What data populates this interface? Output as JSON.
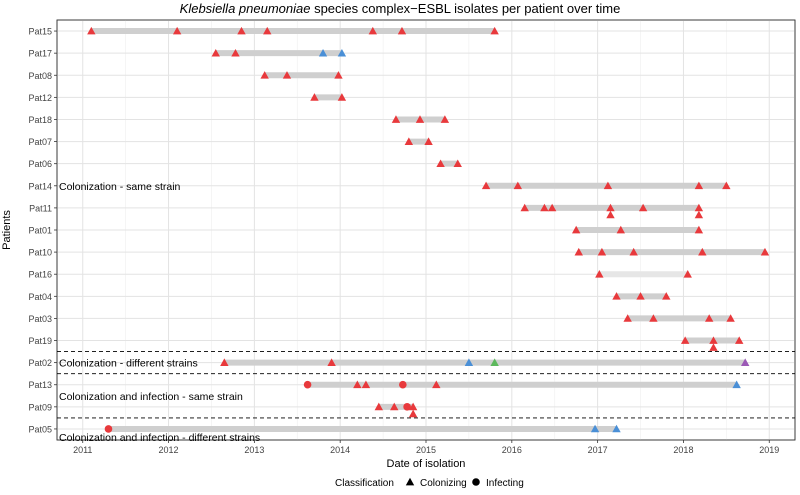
{
  "chart_data": {
    "type": "scatter",
    "title_italic": "Klebsiella pneumoniae",
    "title_rest": " species complex−ESBL isolates per patient over time",
    "xlabel": "Date of isolation",
    "ylabel": "Patients",
    "xlim": [
      2010.7,
      2019.3
    ],
    "x_ticks": [
      "2011",
      "2012",
      "2013",
      "2014",
      "2015",
      "2016",
      "2017",
      "2018",
      "2019"
    ],
    "grid": true,
    "legend": {
      "title": "Classification",
      "position": "bottom",
      "items": [
        {
          "label": "Colonizing",
          "shape": "triangle"
        },
        {
          "label": "Infecting",
          "shape": "circle"
        }
      ]
    },
    "colors": {
      "red": "#e8393c",
      "blue": "#4a8fd6",
      "green": "#5cb85c",
      "purple": "#9b59b6",
      "range_dark": "#cfcfcf",
      "range_light": "#e6e6e6"
    },
    "groups": [
      {
        "label": "Colonization - same strain",
        "label_row": "Pat14"
      },
      {
        "label": "Colonization - different strains",
        "label_row": "Pat02"
      },
      {
        "label": "Colonization and infection - same strain",
        "label_row": "Pat09"
      },
      {
        "label": "Colonization and infection - different strains",
        "label_row": "Pat05"
      }
    ],
    "patients": [
      {
        "id": "Pat15",
        "range": [
          2011.1,
          2015.8
        ],
        "points": [
          {
            "x": 2011.1,
            "c": "red",
            "s": "tri"
          },
          {
            "x": 2012.1,
            "c": "red",
            "s": "tri"
          },
          {
            "x": 2012.85,
            "c": "red",
            "s": "tri"
          },
          {
            "x": 2013.15,
            "c": "red",
            "s": "tri"
          },
          {
            "x": 2014.38,
            "c": "red",
            "s": "tri"
          },
          {
            "x": 2014.72,
            "c": "red",
            "s": "tri"
          },
          {
            "x": 2015.8,
            "c": "red",
            "s": "tri"
          }
        ]
      },
      {
        "id": "Pat17",
        "range": [
          2012.55,
          2014.02
        ],
        "points": [
          {
            "x": 2012.55,
            "c": "red",
            "s": "tri"
          },
          {
            "x": 2012.78,
            "c": "red",
            "s": "tri"
          },
          {
            "x": 2013.8,
            "c": "blue",
            "s": "tri"
          },
          {
            "x": 2014.02,
            "c": "blue",
            "s": "tri"
          }
        ]
      },
      {
        "id": "Pat08",
        "range": [
          2013.12,
          2013.98
        ],
        "points": [
          {
            "x": 2013.12,
            "c": "red",
            "s": "tri"
          },
          {
            "x": 2013.38,
            "c": "red",
            "s": "tri"
          },
          {
            "x": 2013.98,
            "c": "red",
            "s": "tri"
          }
        ]
      },
      {
        "id": "Pat12",
        "range": [
          2013.7,
          2014.02
        ],
        "points": [
          {
            "x": 2013.7,
            "c": "red",
            "s": "tri"
          },
          {
            "x": 2014.02,
            "c": "red",
            "s": "tri"
          }
        ]
      },
      {
        "id": "Pat18",
        "range": [
          2014.65,
          2015.22
        ],
        "points": [
          {
            "x": 2014.65,
            "c": "red",
            "s": "tri"
          },
          {
            "x": 2014.93,
            "c": "red",
            "s": "tri"
          },
          {
            "x": 2015.22,
            "c": "red",
            "s": "tri"
          }
        ]
      },
      {
        "id": "Pat07",
        "range": [
          2014.8,
          2015.03
        ],
        "points": [
          {
            "x": 2014.8,
            "c": "red",
            "s": "tri"
          },
          {
            "x": 2015.03,
            "c": "red",
            "s": "tri"
          }
        ]
      },
      {
        "id": "Pat06",
        "range": [
          2015.17,
          2015.37
        ],
        "points": [
          {
            "x": 2015.17,
            "c": "red",
            "s": "tri"
          },
          {
            "x": 2015.37,
            "c": "red",
            "s": "tri"
          }
        ]
      },
      {
        "id": "Pat14",
        "range": [
          2015.7,
          2018.5
        ],
        "points": [
          {
            "x": 2015.7,
            "c": "red",
            "s": "tri"
          },
          {
            "x": 2016.07,
            "c": "red",
            "s": "tri"
          },
          {
            "x": 2017.12,
            "c": "red",
            "s": "tri"
          },
          {
            "x": 2018.18,
            "c": "red",
            "s": "tri"
          },
          {
            "x": 2018.5,
            "c": "red",
            "s": "tri"
          }
        ]
      },
      {
        "id": "Pat11",
        "range": [
          2016.15,
          2018.18
        ],
        "points": [
          {
            "x": 2016.15,
            "c": "red",
            "s": "tri"
          },
          {
            "x": 2016.38,
            "c": "red",
            "s": "tri"
          },
          {
            "x": 2016.47,
            "c": "red",
            "s": "tri"
          },
          {
            "x": 2017.15,
            "c": "red",
            "s": "tri"
          },
          {
            "x": 2017.15,
            "c": "red",
            "s": "tri",
            "dy": 1
          },
          {
            "x": 2017.53,
            "c": "red",
            "s": "tri"
          },
          {
            "x": 2018.18,
            "c": "red",
            "s": "tri"
          },
          {
            "x": 2018.18,
            "c": "red",
            "s": "tri",
            "dy": 1
          }
        ]
      },
      {
        "id": "Pat01",
        "range": [
          2016.75,
          2018.18
        ],
        "points": [
          {
            "x": 2016.75,
            "c": "red",
            "s": "tri"
          },
          {
            "x": 2017.27,
            "c": "red",
            "s": "tri"
          },
          {
            "x": 2018.18,
            "c": "red",
            "s": "tri"
          }
        ]
      },
      {
        "id": "Pat10",
        "range": [
          2016.78,
          2018.95
        ],
        "points": [
          {
            "x": 2016.78,
            "c": "red",
            "s": "tri"
          },
          {
            "x": 2017.05,
            "c": "red",
            "s": "tri"
          },
          {
            "x": 2017.42,
            "c": "red",
            "s": "tri"
          },
          {
            "x": 2018.22,
            "c": "red",
            "s": "tri"
          },
          {
            "x": 2018.95,
            "c": "red",
            "s": "tri"
          }
        ]
      },
      {
        "id": "Pat16",
        "range": [
          2017.02,
          2018.05
        ],
        "light": true,
        "points": [
          {
            "x": 2017.02,
            "c": "red",
            "s": "tri"
          },
          {
            "x": 2018.05,
            "c": "red",
            "s": "tri"
          }
        ]
      },
      {
        "id": "Pat04",
        "range": [
          2017.22,
          2017.8
        ],
        "points": [
          {
            "x": 2017.22,
            "c": "red",
            "s": "tri"
          },
          {
            "x": 2017.5,
            "c": "red",
            "s": "tri"
          },
          {
            "x": 2017.8,
            "c": "red",
            "s": "tri"
          }
        ]
      },
      {
        "id": "Pat03",
        "range": [
          2017.35,
          2018.55
        ],
        "points": [
          {
            "x": 2017.35,
            "c": "red",
            "s": "tri"
          },
          {
            "x": 2017.65,
            "c": "red",
            "s": "tri"
          },
          {
            "x": 2018.3,
            "c": "red",
            "s": "tri"
          },
          {
            "x": 2018.55,
            "c": "red",
            "s": "tri"
          }
        ]
      },
      {
        "id": "Pat19",
        "range": [
          2018.02,
          2018.65
        ],
        "points": [
          {
            "x": 2018.02,
            "c": "red",
            "s": "tri"
          },
          {
            "x": 2018.35,
            "c": "red",
            "s": "tri"
          },
          {
            "x": 2018.35,
            "c": "red",
            "s": "tri",
            "dy": 1
          },
          {
            "x": 2018.65,
            "c": "red",
            "s": "tri"
          }
        ]
      },
      {
        "id": "Pat02",
        "range": [
          2012.65,
          2018.72
        ],
        "points": [
          {
            "x": 2012.65,
            "c": "red",
            "s": "tri"
          },
          {
            "x": 2013.9,
            "c": "red",
            "s": "tri"
          },
          {
            "x": 2015.5,
            "c": "blue",
            "s": "tri"
          },
          {
            "x": 2015.8,
            "c": "green",
            "s": "tri"
          },
          {
            "x": 2018.72,
            "c": "purple",
            "s": "tri"
          }
        ]
      },
      {
        "id": "Pat13",
        "range": [
          2013.62,
          2018.62
        ],
        "points": [
          {
            "x": 2013.62,
            "c": "red",
            "s": "circ"
          },
          {
            "x": 2014.2,
            "c": "red",
            "s": "tri"
          },
          {
            "x": 2014.3,
            "c": "red",
            "s": "tri"
          },
          {
            "x": 2014.73,
            "c": "red",
            "s": "circ"
          },
          {
            "x": 2015.12,
            "c": "red",
            "s": "tri"
          },
          {
            "x": 2018.62,
            "c": "blue",
            "s": "tri"
          }
        ]
      },
      {
        "id": "Pat09",
        "range": [
          2014.45,
          2014.85
        ],
        "points": [
          {
            "x": 2014.45,
            "c": "red",
            "s": "tri"
          },
          {
            "x": 2014.63,
            "c": "red",
            "s": "tri"
          },
          {
            "x": 2014.78,
            "c": "red",
            "s": "circ"
          },
          {
            "x": 2014.85,
            "c": "red",
            "s": "tri"
          },
          {
            "x": 2014.85,
            "c": "red",
            "s": "tri",
            "dy": 1
          }
        ]
      },
      {
        "id": "Pat05",
        "range": [
          2011.3,
          2017.22
        ],
        "points": [
          {
            "x": 2011.3,
            "c": "red",
            "s": "circ"
          },
          {
            "x": 2016.97,
            "c": "blue",
            "s": "tri"
          },
          {
            "x": 2017.22,
            "c": "blue",
            "s": "tri"
          }
        ]
      }
    ],
    "separators_after": [
      "Pat19",
      "Pat02",
      "Pat09"
    ]
  }
}
